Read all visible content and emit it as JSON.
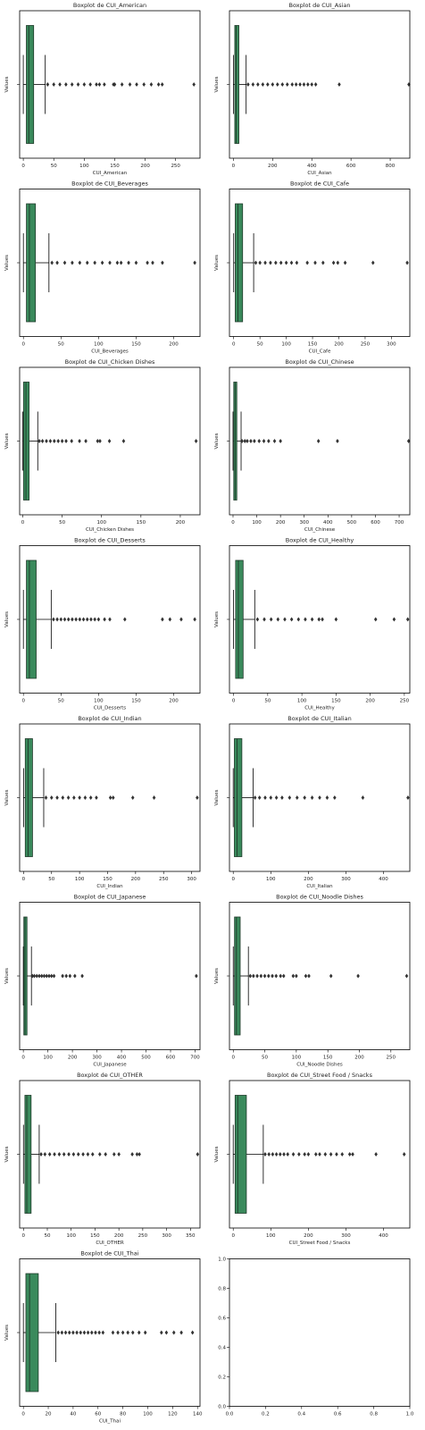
{
  "figure": {
    "ylabel": "Values",
    "box_color": "#3a8a5c",
    "line_color": "#000000"
  },
  "chart_data": [
    {
      "type": "boxplot",
      "title": "Boxplot de CUI_American",
      "xlabel": "CUI_American",
      "ylabel": "Values",
      "xlim": [
        -6,
        290
      ],
      "xticks": [
        0,
        50,
        100,
        150,
        200,
        250
      ],
      "box": {
        "min": 0,
        "q1": 5,
        "median": 9,
        "q3": 17,
        "whisker_high": 36
      },
      "outliers": [
        40,
        50,
        60,
        70,
        80,
        90,
        100,
        110,
        120,
        125,
        133,
        148,
        150,
        162,
        175,
        186,
        198,
        210,
        222,
        228,
        280
      ]
    },
    {
      "type": "boxplot",
      "title": "Boxplot de CUI_Asian",
      "xlabel": "CUI_Asian",
      "ylabel": "Values",
      "xlim": [
        -20,
        900
      ],
      "xticks": [
        0,
        200,
        400,
        600,
        800
      ],
      "box": {
        "min": 0,
        "q1": 7,
        "median": 14,
        "q3": 28,
        "whisker_high": 65
      },
      "outliers": [
        75,
        100,
        125,
        150,
        175,
        200,
        225,
        250,
        275,
        300,
        320,
        340,
        360,
        380,
        400,
        420,
        540,
        895
      ]
    },
    {
      "type": "boxplot",
      "title": "Boxplot de CUI_Beverages",
      "xlabel": "CUI_Beverages",
      "ylabel": "Values",
      "xlim": [
        -5,
        235
      ],
      "xticks": [
        0,
        50,
        100,
        150,
        200
      ],
      "box": {
        "min": 0,
        "q1": 4,
        "median": 8,
        "q3": 16,
        "whisker_high": 34
      },
      "outliers": [
        38,
        45,
        55,
        65,
        75,
        85,
        95,
        105,
        115,
        125,
        130,
        140,
        150,
        165,
        172,
        185,
        228
      ]
    },
    {
      "type": "boxplot",
      "title": "Boxplot de CUI_Cafe",
      "xlabel": "CUI_Cafe",
      "ylabel": "Values",
      "xlim": [
        -8,
        335
      ],
      "xticks": [
        0,
        50,
        100,
        150,
        200,
        250,
        300
      ],
      "box": {
        "min": 0,
        "q1": 3,
        "median": 8,
        "q3": 17,
        "whisker_high": 38
      },
      "outliers": [
        42,
        50,
        60,
        70,
        80,
        90,
        100,
        110,
        120,
        140,
        155,
        170,
        190,
        198,
        212,
        265,
        330
      ]
    },
    {
      "type": "boxplot",
      "title": "Boxplot de CUI_Chicken Dishes",
      "xlabel": "CUI_Chicken Dishes",
      "ylabel": "Values",
      "xlim": [
        -4,
        225
      ],
      "xticks": [
        0,
        50,
        100,
        150,
        200
      ],
      "box": {
        "min": 0,
        "q1": 1,
        "median": 4,
        "q3": 8,
        "whisker_high": 19
      },
      "outliers": [
        21,
        25,
        30,
        35,
        40,
        45,
        50,
        55,
        62,
        72,
        80,
        95,
        98,
        110,
        128,
        220
      ]
    },
    {
      "type": "boxplot",
      "title": "Boxplot de CUI_Chinese",
      "xlabel": "CUI_Chinese",
      "ylabel": "Values",
      "xlim": [
        -15,
        745
      ],
      "xticks": [
        0,
        100,
        200,
        300,
        400,
        500,
        600,
        700
      ],
      "box": {
        "min": 0,
        "q1": 3,
        "median": 9,
        "q3": 16,
        "whisker_high": 34
      },
      "outliers": [
        38,
        50,
        60,
        75,
        90,
        110,
        130,
        150,
        175,
        200,
        360,
        440,
        740
      ]
    },
    {
      "type": "boxplot",
      "title": "Boxplot de CUI_Desserts",
      "xlabel": "CUI_Desserts",
      "ylabel": "Values",
      "xlim": [
        -5,
        235
      ],
      "xticks": [
        0,
        50,
        100,
        150,
        200
      ],
      "box": {
        "min": 0,
        "q1": 4,
        "median": 8,
        "q3": 17,
        "whisker_high": 37
      },
      "outliers": [
        40,
        45,
        50,
        55,
        60,
        65,
        70,
        75,
        80,
        85,
        90,
        95,
        100,
        108,
        115,
        135,
        185,
        195,
        210,
        228
      ]
    },
    {
      "type": "boxplot",
      "title": "Boxplot de CUI_Healthy",
      "xlabel": "CUI_Healthy",
      "ylabel": "Values",
      "xlim": [
        -6,
        258
      ],
      "xticks": [
        0,
        50,
        100,
        150,
        200,
        250
      ],
      "box": {
        "min": 0,
        "q1": 3,
        "median": 7,
        "q3": 14,
        "whisker_high": 31
      },
      "outliers": [
        35,
        45,
        55,
        65,
        75,
        85,
        95,
        105,
        115,
        125,
        130,
        150,
        208,
        235,
        255
      ]
    },
    {
      "type": "boxplot",
      "title": "Boxplot de CUI_Indian",
      "xlabel": "CUI_Indian",
      "ylabel": "Values",
      "xlim": [
        -7,
        315
      ],
      "xticks": [
        0,
        50,
        100,
        150,
        200,
        250,
        300
      ],
      "box": {
        "min": 0,
        "q1": 3,
        "median": 8,
        "q3": 16,
        "whisker_high": 36
      },
      "outliers": [
        40,
        50,
        60,
        70,
        80,
        90,
        100,
        110,
        120,
        130,
        155,
        160,
        195,
        233,
        310
      ]
    },
    {
      "type": "boxplot",
      "title": "Boxplot de CUI_Italian",
      "xlabel": "CUI_Italian",
      "ylabel": "Values",
      "xlim": [
        -10,
        470
      ],
      "xticks": [
        0,
        100,
        200,
        300,
        400
      ],
      "box": {
        "min": 0,
        "q1": 3,
        "median": 10,
        "q3": 23,
        "whisker_high": 53
      },
      "outliers": [
        58,
        70,
        85,
        100,
        115,
        130,
        150,
        170,
        190,
        210,
        230,
        250,
        270,
        345,
        465
      ]
    },
    {
      "type": "boxplot",
      "title": "Boxplot de CUI_Japanese",
      "xlabel": "CUI_Japanese",
      "ylabel": "Values",
      "xlim": [
        -15,
        720
      ],
      "xticks": [
        0,
        100,
        200,
        300,
        400,
        500,
        600,
        700
      ],
      "box": {
        "min": 0,
        "q1": 2,
        "median": 7,
        "q3": 15,
        "whisker_high": 33
      },
      "outliers": [
        37,
        45,
        55,
        65,
        75,
        85,
        95,
        105,
        115,
        125,
        160,
        175,
        190,
        210,
        240,
        705
      ]
    },
    {
      "type": "boxplot",
      "title": "Boxplot de CUI_Noodle Dishes",
      "xlabel": "CUI_Noodle Dishes",
      "ylabel": "Values",
      "xlim": [
        -6,
        280
      ],
      "xticks": [
        0,
        50,
        100,
        150,
        200,
        250
      ],
      "box": {
        "min": 0,
        "q1": 2,
        "median": 5,
        "q3": 11,
        "whisker_high": 24
      },
      "outliers": [
        27,
        32,
        38,
        44,
        50,
        56,
        62,
        68,
        75,
        80,
        95,
        100,
        115,
        120,
        155,
        198,
        275
      ]
    },
    {
      "type": "boxplot",
      "title": "Boxplot de CUI_OTHER",
      "xlabel": "CUI_OTHER",
      "ylabel": "Values",
      "xlim": [
        -8,
        370
      ],
      "xticks": [
        0,
        50,
        100,
        150,
        200,
        250,
        300,
        350
      ],
      "box": {
        "min": 0,
        "q1": 3,
        "median": 7,
        "q3": 16,
        "whisker_high": 33
      },
      "outliers": [
        37,
        45,
        55,
        65,
        75,
        85,
        95,
        105,
        115,
        125,
        135,
        145,
        160,
        172,
        190,
        200,
        228,
        238,
        243,
        365
      ]
    },
    {
      "type": "boxplot",
      "title": "Boxplot de CUI_Street Food / Snacks",
      "xlabel": "CUI_Street Food / Snacks",
      "ylabel": "Values",
      "xlim": [
        -10,
        470
      ],
      "xticks": [
        0,
        100,
        200,
        300,
        400
      ],
      "box": {
        "min": 0,
        "q1": 5,
        "median": 12,
        "q3": 35,
        "whisker_high": 80
      },
      "outliers": [
        85,
        95,
        105,
        115,
        125,
        135,
        145,
        160,
        175,
        190,
        200,
        220,
        230,
        245,
        260,
        275,
        290,
        310,
        318,
        380,
        455
      ]
    },
    {
      "type": "boxplot",
      "title": "Boxplot de CUI_Thai",
      "xlabel": "CUI_Thai",
      "ylabel": "Values",
      "xlim": [
        -3,
        142
      ],
      "xticks": [
        0,
        20,
        40,
        60,
        80,
        100,
        120,
        140
      ],
      "box": {
        "min": 0,
        "q1": 2,
        "median": 5,
        "q3": 12,
        "whisker_high": 26
      },
      "outliers": [
        28,
        31,
        34,
        37,
        40,
        43,
        46,
        49,
        52,
        55,
        58,
        61,
        64,
        72,
        76,
        80,
        84,
        88,
        93,
        98,
        111,
        115,
        121,
        127,
        136
      ]
    },
    {
      "type": "empty",
      "xlim": [
        0,
        1
      ],
      "ylim": [
        0,
        1
      ],
      "xticks": [
        "0.0",
        "0.2",
        "0.4",
        "0.6",
        "0.8",
        "1.0"
      ],
      "yticks": [
        "0.0",
        "0.2",
        "0.4",
        "0.6",
        "0.8",
        "1.0"
      ]
    }
  ]
}
